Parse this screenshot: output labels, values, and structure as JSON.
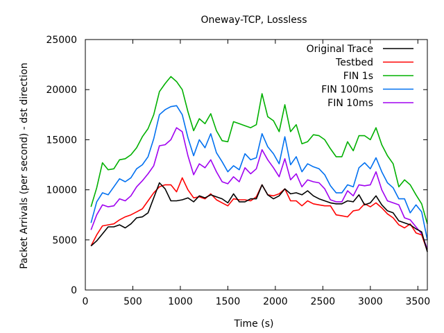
{
  "chart_data": {
    "type": "line",
    "title": "Oneway-TCP, Lossless",
    "xlabel": "Time (s)",
    "ylabel": "Packet Arrivals (per second) - dst direction",
    "xlim": [
      0,
      3600
    ],
    "ylim": [
      0,
      25000
    ],
    "xticks": [
      0,
      500,
      1000,
      1500,
      2000,
      2500,
      3000,
      3500
    ],
    "yticks": [
      0,
      5000,
      10000,
      15000,
      20000,
      25000
    ],
    "grid": false,
    "legend_position": "top-right",
    "x": [
      60,
      120,
      180,
      240,
      300,
      360,
      420,
      480,
      540,
      600,
      660,
      720,
      780,
      840,
      900,
      960,
      1020,
      1080,
      1140,
      1200,
      1260,
      1320,
      1380,
      1440,
      1500,
      1560,
      1620,
      1680,
      1740,
      1800,
      1860,
      1920,
      1980,
      2040,
      2100,
      2160,
      2220,
      2280,
      2340,
      2400,
      2460,
      2520,
      2580,
      2640,
      2700,
      2760,
      2820,
      2880,
      2940,
      3000,
      3060,
      3120,
      3180,
      3240,
      3300,
      3360,
      3420,
      3480,
      3540,
      3600
    ],
    "series": [
      {
        "name": "Original Trace",
        "color": "#000000",
        "values": [
          4400,
          4900,
          5600,
          6300,
          6300,
          6500,
          6200,
          6600,
          7200,
          7300,
          7700,
          9200,
          10700,
          10100,
          8900,
          8900,
          9000,
          9200,
          8800,
          9400,
          9200,
          9500,
          9300,
          9100,
          8700,
          9600,
          8800,
          8800,
          9100,
          9100,
          10500,
          9500,
          9100,
          9400,
          10100,
          9600,
          9700,
          9500,
          9900,
          9400,
          9100,
          8900,
          8700,
          8600,
          8600,
          8900,
          8800,
          9500,
          8500,
          8700,
          9400,
          8500,
          7900,
          7700,
          6900,
          6700,
          6500,
          6100,
          5800,
          3800
        ]
      },
      {
        "name": "Testbed",
        "color": "#ff0000",
        "values": [
          4400,
          5500,
          6400,
          6500,
          6600,
          7000,
          7300,
          7500,
          7800,
          8100,
          8900,
          9700,
          10300,
          10500,
          10500,
          9800,
          11200,
          10000,
          9200,
          9300,
          9100,
          9600,
          9000,
          8700,
          8400,
          9100,
          9000,
          9000,
          8900,
          9300,
          10500,
          9500,
          9400,
          9600,
          10100,
          8900,
          8900,
          8400,
          8900,
          8600,
          8500,
          8400,
          8400,
          7500,
          7400,
          7300,
          7900,
          8000,
          8600,
          8300,
          8700,
          8200,
          7600,
          7200,
          6500,
          6200,
          6600,
          5700,
          5500,
          3900
        ]
      },
      {
        "name": "FIN 1s",
        "color": "#00b000",
        "values": [
          8300,
          10200,
          12700,
          12000,
          12100,
          13000,
          13100,
          13500,
          14200,
          15300,
          16100,
          17500,
          19800,
          20600,
          21300,
          20800,
          20000,
          17800,
          15900,
          17100,
          16600,
          17600,
          15900,
          14900,
          14800,
          16800,
          16600,
          16400,
          16200,
          16500,
          19600,
          17300,
          16900,
          15800,
          18500,
          15800,
          16500,
          14600,
          14800,
          15500,
          15400,
          15000,
          14100,
          13300,
          13300,
          14800,
          13900,
          15400,
          15400,
          15000,
          16200,
          14500,
          13400,
          12600,
          10300,
          11000,
          10500,
          9500,
          8600,
          6600
        ]
      },
      {
        "name": "FIN 100ms",
        "color": "#0070f0",
        "values": [
          6700,
          8800,
          9700,
          9500,
          10300,
          11100,
          10800,
          11200,
          12100,
          12500,
          13300,
          15100,
          17500,
          18000,
          18300,
          18400,
          17500,
          15200,
          13400,
          15000,
          14200,
          15600,
          13700,
          12800,
          11800,
          12400,
          12000,
          13600,
          13000,
          13200,
          15600,
          14300,
          13600,
          12600,
          15300,
          12500,
          13300,
          11800,
          12600,
          12300,
          12100,
          11500,
          10400,
          9700,
          9700,
          10500,
          10300,
          12200,
          12700,
          12100,
          13200,
          11800,
          10700,
          10200,
          9100,
          9100,
          7700,
          8500,
          7800,
          5000
        ]
      },
      {
        "name": "FIN 10ms",
        "color": "#a000f0",
        "values": [
          6000,
          7500,
          8500,
          8300,
          8400,
          9100,
          8900,
          9400,
          10300,
          10900,
          11600,
          12400,
          14400,
          14500,
          15000,
          16200,
          15800,
          13400,
          11500,
          12600,
          12200,
          13000,
          11800,
          10800,
          10600,
          11300,
          10800,
          12200,
          11600,
          12100,
          14000,
          13000,
          12200,
          11300,
          13100,
          11000,
          11600,
          10300,
          11000,
          10800,
          10700,
          10100,
          9000,
          8800,
          8800,
          9900,
          9400,
          10500,
          10400,
          10500,
          11800,
          10000,
          8900,
          8700,
          8500,
          7200,
          7000,
          6300,
          5600,
          4100
        ]
      }
    ]
  }
}
